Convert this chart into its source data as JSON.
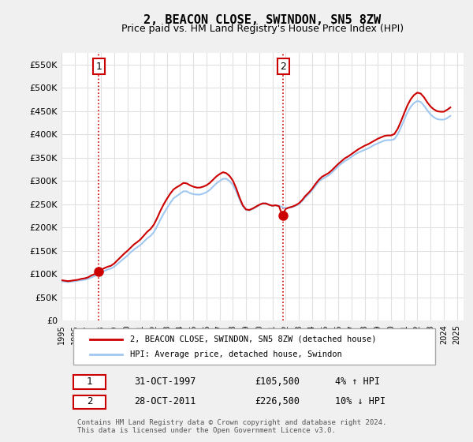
{
  "title": "2, BEACON CLOSE, SWINDON, SN5 8ZW",
  "subtitle": "Price paid vs. HM Land Registry's House Price Index (HPI)",
  "ylabel_values": [
    "£0",
    "£50K",
    "£100K",
    "£150K",
    "£200K",
    "£250K",
    "£300K",
    "£350K",
    "£400K",
    "£450K",
    "£500K",
    "£550K"
  ],
  "ylim": [
    0,
    575000
  ],
  "xlim_start": 1995.0,
  "xlim_end": 2025.5,
  "bg_color": "#f0f0f0",
  "plot_bg_color": "#ffffff",
  "grid_color": "#e0e0e0",
  "hpi_color": "#a0c8f0",
  "price_color": "#cc0000",
  "sale1_x": 1997.83,
  "sale1_y": 105500,
  "sale2_x": 2011.83,
  "sale2_y": 226500,
  "sale1_label": "1",
  "sale2_label": "2",
  "legend_property": "2, BEACON CLOSE, SWINDON, SN5 8ZW (detached house)",
  "legend_hpi": "HPI: Average price, detached house, Swindon",
  "info1_num": "1",
  "info1_date": "31-OCT-1997",
  "info1_price": "£105,500",
  "info1_hpi": "4% ↑ HPI",
  "info2_num": "2",
  "info2_date": "28-OCT-2011",
  "info2_price": "£226,500",
  "info2_hpi": "10% ↓ HPI",
  "footer": "Contains HM Land Registry data © Crown copyright and database right 2024.\nThis data is licensed under the Open Government Licence v3.0.",
  "hpi_data_x": [
    1995.0,
    1995.25,
    1995.5,
    1995.75,
    1996.0,
    1996.25,
    1996.5,
    1996.75,
    1997.0,
    1997.25,
    1997.5,
    1997.75,
    1998.0,
    1998.25,
    1998.5,
    1998.75,
    1999.0,
    1999.25,
    1999.5,
    1999.75,
    2000.0,
    2000.25,
    2000.5,
    2000.75,
    2001.0,
    2001.25,
    2001.5,
    2001.75,
    2002.0,
    2002.25,
    2002.5,
    2002.75,
    2003.0,
    2003.25,
    2003.5,
    2003.75,
    2004.0,
    2004.25,
    2004.5,
    2004.75,
    2005.0,
    2005.25,
    2005.5,
    2005.75,
    2006.0,
    2006.25,
    2006.5,
    2006.75,
    2007.0,
    2007.25,
    2007.5,
    2007.75,
    2008.0,
    2008.25,
    2008.5,
    2008.75,
    2009.0,
    2009.25,
    2009.5,
    2009.75,
    2010.0,
    2010.25,
    2010.5,
    2010.75,
    2011.0,
    2011.25,
    2011.5,
    2011.75,
    2012.0,
    2012.25,
    2012.5,
    2012.75,
    2013.0,
    2013.25,
    2013.5,
    2013.75,
    2014.0,
    2014.25,
    2014.5,
    2014.75,
    2015.0,
    2015.25,
    2015.5,
    2015.75,
    2016.0,
    2016.25,
    2016.5,
    2016.75,
    2017.0,
    2017.25,
    2017.5,
    2017.75,
    2018.0,
    2018.25,
    2018.5,
    2018.75,
    2019.0,
    2019.25,
    2019.5,
    2019.75,
    2020.0,
    2020.25,
    2020.5,
    2020.75,
    2021.0,
    2021.25,
    2021.5,
    2021.75,
    2022.0,
    2022.25,
    2022.5,
    2022.75,
    2023.0,
    2023.25,
    2023.5,
    2023.75,
    2024.0,
    2024.25,
    2024.5
  ],
  "hpi_data_y": [
    85000,
    84000,
    83000,
    84000,
    85000,
    86000,
    87000,
    88000,
    90000,
    93000,
    96000,
    99000,
    103000,
    107000,
    110000,
    112000,
    116000,
    122000,
    128000,
    134000,
    140000,
    147000,
    153000,
    158000,
    163000,
    170000,
    177000,
    182000,
    190000,
    203000,
    217000,
    230000,
    242000,
    253000,
    263000,
    268000,
    273000,
    278000,
    278000,
    274000,
    272000,
    271000,
    271000,
    273000,
    276000,
    281000,
    288000,
    295000,
    300000,
    305000,
    305000,
    300000,
    292000,
    278000,
    261000,
    246000,
    238000,
    237000,
    240000,
    244000,
    248000,
    252000,
    252000,
    249000,
    247000,
    248000,
    247000,
    244000,
    242000,
    243000,
    244000,
    247000,
    250000,
    257000,
    265000,
    272000,
    280000,
    289000,
    298000,
    304000,
    308000,
    312000,
    318000,
    325000,
    332000,
    338000,
    343000,
    347000,
    352000,
    357000,
    361000,
    364000,
    367000,
    370000,
    374000,
    378000,
    381000,
    384000,
    387000,
    388000,
    388000,
    390000,
    400000,
    415000,
    432000,
    448000,
    460000,
    468000,
    472000,
    470000,
    462000,
    452000,
    443000,
    437000,
    433000,
    432000,
    432000,
    435000,
    440000
  ],
  "price_data_x": [
    1995.0,
    1995.25,
    1995.5,
    1995.75,
    1996.0,
    1996.25,
    1996.5,
    1996.75,
    1997.0,
    1997.25,
    1997.5,
    1997.75,
    1998.0,
    1998.25,
    1998.5,
    1998.75,
    1999.0,
    1999.25,
    1999.5,
    1999.75,
    2000.0,
    2000.25,
    2000.5,
    2000.75,
    2001.0,
    2001.25,
    2001.5,
    2001.75,
    2002.0,
    2002.25,
    2002.5,
    2002.75,
    2003.0,
    2003.25,
    2003.5,
    2003.75,
    2004.0,
    2004.25,
    2004.5,
    2004.75,
    2005.0,
    2005.25,
    2005.5,
    2005.75,
    2006.0,
    2006.25,
    2006.5,
    2006.75,
    2007.0,
    2007.25,
    2007.5,
    2007.75,
    2008.0,
    2008.25,
    2008.5,
    2008.75,
    2009.0,
    2009.25,
    2009.5,
    2009.75,
    2010.0,
    2010.25,
    2010.5,
    2010.75,
    2011.0,
    2011.25,
    2011.5,
    2011.75,
    2012.0,
    2012.25,
    2012.5,
    2012.75,
    2013.0,
    2013.25,
    2013.5,
    2013.75,
    2014.0,
    2014.25,
    2014.5,
    2014.75,
    2015.0,
    2015.25,
    2015.5,
    2015.75,
    2016.0,
    2016.25,
    2016.5,
    2016.75,
    2017.0,
    2017.25,
    2017.5,
    2017.75,
    2018.0,
    2018.25,
    2018.5,
    2018.75,
    2019.0,
    2019.25,
    2019.5,
    2019.75,
    2020.0,
    2020.25,
    2020.5,
    2020.75,
    2021.0,
    2021.25,
    2021.5,
    2021.75,
    2022.0,
    2022.25,
    2022.5,
    2022.75,
    2023.0,
    2023.25,
    2023.5,
    2023.75,
    2024.0,
    2024.25,
    2024.5
  ],
  "price_data_y": [
    87000,
    86000,
    85000,
    86000,
    87000,
    88000,
    90000,
    91000,
    93000,
    97000,
    100000,
    105500,
    109000,
    113000,
    116000,
    118000,
    123000,
    130000,
    137000,
    144000,
    150000,
    157000,
    164000,
    169000,
    175000,
    183000,
    191000,
    197000,
    206000,
    220000,
    236000,
    250000,
    262000,
    273000,
    282000,
    287000,
    291000,
    296000,
    295000,
    291000,
    288000,
    286000,
    286000,
    288000,
    291000,
    296000,
    303000,
    310000,
    315000,
    319000,
    317000,
    311000,
    301000,
    285000,
    265000,
    248000,
    239000,
    238000,
    241000,
    245000,
    249000,
    252000,
    252000,
    249000,
    247000,
    248000,
    246000,
    226500,
    240000,
    243000,
    245000,
    248000,
    252000,
    259000,
    268000,
    275000,
    283000,
    293000,
    302000,
    309000,
    313000,
    317000,
    323000,
    330000,
    337000,
    343000,
    349000,
    353000,
    358000,
    363000,
    368000,
    372000,
    376000,
    379000,
    383000,
    387000,
    391000,
    394000,
    397000,
    398000,
    398000,
    401000,
    412000,
    428000,
    446000,
    463000,
    476000,
    485000,
    490000,
    488000,
    480000,
    469000,
    460000,
    454000,
    450000,
    449000,
    449000,
    453000,
    458000
  ]
}
